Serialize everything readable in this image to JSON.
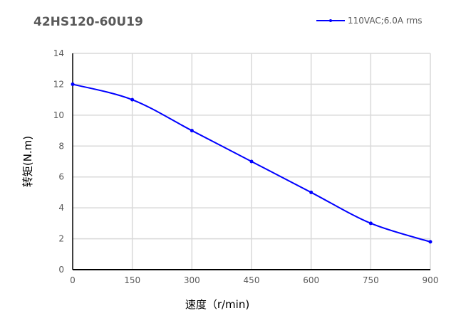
{
  "chart_data": {
    "type": "line",
    "title": "42HS120-60U19",
    "xlabel": "速度（r/min)",
    "ylabel": "转矩(N.m)",
    "x": [
      0,
      150,
      300,
      450,
      600,
      750,
      900
    ],
    "series": [
      {
        "name": "110VAC;6.0A rms",
        "values": [
          12,
          11,
          9,
          7,
          5,
          3,
          1.8
        ],
        "color": "#0000ff"
      }
    ],
    "xlim": [
      0,
      900
    ],
    "ylim": [
      0,
      14
    ],
    "xticks": [
      "0",
      "150",
      "300",
      "450",
      "600",
      "750",
      "900"
    ],
    "yticks": [
      "0",
      "2",
      "4",
      "6",
      "8",
      "10",
      "12",
      "14"
    ],
    "grid": true,
    "smooth": true,
    "legend_position": "top-right"
  }
}
